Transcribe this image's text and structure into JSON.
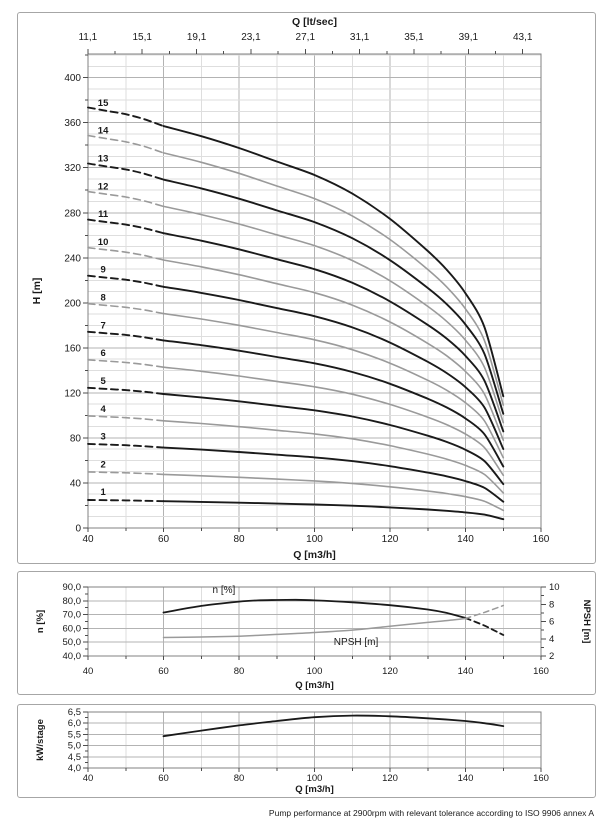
{
  "footer": {
    "text": "Pump performance at 2900rpm with relevant tolerance according to ISO 9906 annex A"
  },
  "colors": {
    "curve_black": "#1a1a1a",
    "curve_gray": "#9a9a9a",
    "grid_minor": "#dedede",
    "grid_major": "#b3b3b3",
    "plot_border": "#808080",
    "tick": "#4d4d4d",
    "panel_border": "#a6a6a6",
    "text": "#1a1a1a"
  },
  "chart_data": [
    {
      "id": "head",
      "type": "line",
      "xlabel": "Q [m3/h]",
      "ylabel": "H [m]",
      "xlim": [
        40,
        160
      ],
      "ylim": [
        0,
        421
      ],
      "grid": {
        "x_step": 10,
        "x_major_step": 20,
        "y_step": 10,
        "y_major_step": 40,
        "on": true
      },
      "x_tick_labels": [
        "40",
        "60",
        "80",
        "100",
        "120",
        "140",
        "160"
      ],
      "x_tick_values": [
        40,
        60,
        80,
        100,
        120,
        140,
        160
      ],
      "y_tick_labels": [
        "0",
        "40",
        "80",
        "120",
        "160",
        "200",
        "240",
        "280",
        "320",
        "360",
        "400"
      ],
      "y_tick_values": [
        0,
        40,
        80,
        120,
        160,
        200,
        240,
        280,
        320,
        360,
        400
      ],
      "top_axis": {
        "title": "Q [lt/sec]",
        "tick_labels": [
          "11,1",
          "15,1",
          "19,1",
          "23,1",
          "27,1",
          "31,1",
          "35,1",
          "39,1",
          "43,1"
        ],
        "tick_values_lt_per_sec": [
          11.1,
          15.1,
          19.1,
          23.1,
          27.1,
          31.1,
          35.1,
          39.1,
          43.1
        ],
        "minor_tick_values_lt_per_sec": [
          13.1,
          17.1,
          21.1,
          25.1,
          29.1,
          33.1,
          37.1,
          41.1
        ],
        "m3h_per_lt_sec": 3.6
      },
      "x": [
        40,
        45,
        50,
        55,
        60,
        70,
        80,
        90,
        100,
        110,
        120,
        130,
        135,
        140,
        145,
        150
      ],
      "dashed_up_to_x": 60,
      "series_label_x": 44,
      "series": [
        {
          "name": "1",
          "color": "black",
          "values": [
            24.9,
            24.7,
            24.5,
            24.2,
            23.8,
            23.2,
            22.5,
            21.7,
            20.9,
            19.8,
            18.3,
            16.4,
            15.3,
            13.9,
            11.9,
            7.8
          ]
        },
        {
          "name": "2",
          "color": "gray",
          "values": [
            49.8,
            49.4,
            49.0,
            48.4,
            47.6,
            46.4,
            45.0,
            43.4,
            41.8,
            39.6,
            36.6,
            32.8,
            30.6,
            27.8,
            23.8,
            15.6
          ]
        },
        {
          "name": "3",
          "color": "black",
          "values": [
            74.7,
            74.1,
            73.5,
            72.6,
            71.4,
            69.6,
            67.5,
            65.1,
            62.7,
            59.4,
            54.9,
            49.2,
            45.9,
            41.7,
            35.7,
            23.4
          ]
        },
        {
          "name": "4",
          "color": "gray",
          "values": [
            99.6,
            98.8,
            98.0,
            96.8,
            95.2,
            92.8,
            90.0,
            86.8,
            83.6,
            79.2,
            73.2,
            65.6,
            61.2,
            55.6,
            47.6,
            31.2
          ]
        },
        {
          "name": "5",
          "color": "black",
          "values": [
            124.5,
            123.5,
            122.5,
            121.0,
            119.0,
            116.0,
            112.5,
            108.5,
            104.5,
            99.0,
            91.5,
            82.0,
            76.5,
            69.5,
            59.5,
            39.0
          ]
        },
        {
          "name": "6",
          "color": "gray",
          "values": [
            149.4,
            148.2,
            147.0,
            145.2,
            142.8,
            139.2,
            135.0,
            130.2,
            125.4,
            118.8,
            109.8,
            98.4,
            91.8,
            83.4,
            71.4,
            46.8
          ]
        },
        {
          "name": "7",
          "color": "black",
          "values": [
            174.3,
            172.9,
            171.5,
            169.4,
            166.6,
            162.4,
            157.5,
            151.9,
            146.3,
            138.6,
            128.1,
            114.8,
            107.1,
            97.3,
            83.3,
            54.6
          ]
        },
        {
          "name": "8",
          "color": "gray",
          "values": [
            199.2,
            197.6,
            196.0,
            193.6,
            190.4,
            185.6,
            180.0,
            173.6,
            167.2,
            158.4,
            146.4,
            131.2,
            122.4,
            111.2,
            95.2,
            62.4
          ]
        },
        {
          "name": "9",
          "color": "black",
          "values": [
            224.1,
            222.3,
            220.5,
            217.8,
            214.2,
            208.8,
            202.5,
            195.3,
            188.1,
            178.2,
            164.7,
            147.6,
            137.7,
            125.1,
            107.1,
            70.2
          ]
        },
        {
          "name": "10",
          "color": "gray",
          "values": [
            249.0,
            247.0,
            245.0,
            242.0,
            238.0,
            232.0,
            225.0,
            217.0,
            209.0,
            198.0,
            183.0,
            164.0,
            153.0,
            139.0,
            119.0,
            78.0
          ]
        },
        {
          "name": "11",
          "color": "black",
          "values": [
            273.9,
            271.7,
            269.5,
            266.2,
            261.8,
            255.2,
            247.5,
            238.7,
            229.9,
            217.8,
            201.3,
            180.4,
            168.3,
            152.9,
            130.9,
            85.8
          ]
        },
        {
          "name": "12",
          "color": "gray",
          "values": [
            298.8,
            296.4,
            294.0,
            290.4,
            285.6,
            278.4,
            270.0,
            260.4,
            250.8,
            237.6,
            219.6,
            196.8,
            183.6,
            166.8,
            142.8,
            93.6
          ]
        },
        {
          "name": "13",
          "color": "black",
          "values": [
            323.7,
            321.1,
            318.5,
            314.6,
            309.4,
            301.6,
            292.5,
            282.1,
            271.7,
            257.4,
            237.9,
            213.2,
            198.9,
            180.7,
            154.7,
            101.4
          ]
        },
        {
          "name": "14",
          "color": "gray",
          "values": [
            348.6,
            345.8,
            343.0,
            338.8,
            333.2,
            324.8,
            315.0,
            303.8,
            292.6,
            277.2,
            256.2,
            229.6,
            214.2,
            194.6,
            166.6,
            109.2
          ]
        },
        {
          "name": "15",
          "color": "black",
          "values": [
            373.5,
            370.5,
            367.5,
            363.0,
            357.0,
            348.0,
            337.5,
            325.5,
            313.5,
            297.0,
            274.5,
            246.0,
            229.5,
            208.5,
            178.5,
            117.0
          ]
        }
      ]
    },
    {
      "id": "efficiency_npsh",
      "type": "line",
      "xlabel": "Q [m3/h]",
      "ylabel_left": "n [%]",
      "ylabel_right": "NPSH [m]",
      "xlim": [
        40,
        160
      ],
      "ylim_left": [
        40,
        90
      ],
      "ylim_right": [
        2,
        10
      ],
      "grid": {
        "x_step": 10,
        "x_major_step": 20,
        "y_step": 10,
        "on": true
      },
      "x_tick_labels": [
        "40",
        "60",
        "80",
        "100",
        "120",
        "140",
        "160"
      ],
      "x_tick_values": [
        40,
        60,
        80,
        100,
        120,
        140,
        160
      ],
      "y_tick_labels_left": [
        "40,0",
        "50,0",
        "60,0",
        "70,0",
        "80,0",
        "90,0"
      ],
      "y_tick_values_left": [
        40,
        50,
        60,
        70,
        80,
        90
      ],
      "y_tick_labels_right": [
        "2",
        "4",
        "6",
        "8",
        "10"
      ],
      "y_tick_values_right": [
        2,
        4,
        6,
        8,
        10
      ],
      "series": [
        {
          "name": "n [%]",
          "axis": "left",
          "color": "black",
          "dashed_from_x": 140,
          "x": [
            60,
            70,
            80,
            85,
            90,
            95,
            100,
            110,
            120,
            130,
            135,
            140,
            145,
            150
          ],
          "values": [
            71.5,
            76.3,
            79.4,
            80.3,
            80.6,
            80.7,
            80.3,
            78.9,
            76.8,
            73.7,
            71.2,
            67.5,
            62.0,
            55.2
          ],
          "label": {
            "text": "n [%]",
            "x": 76,
            "y": 85.5
          }
        },
        {
          "name": "NPSH [m]",
          "axis": "right",
          "color": "gray",
          "dashed_from_x": 140,
          "x": [
            60,
            70,
            80,
            90,
            100,
            110,
            120,
            130,
            135,
            140,
            145,
            150
          ],
          "values": [
            4.15,
            4.2,
            4.3,
            4.5,
            4.72,
            5.0,
            5.45,
            5.9,
            6.1,
            6.35,
            7.05,
            7.85
          ],
          "label": {
            "text": "NPSH [m]",
            "x": 111,
            "y": 47.8
          }
        }
      ]
    },
    {
      "id": "power",
      "type": "line",
      "xlabel": "Q [m3/h]",
      "ylabel": "kW/stage",
      "xlim": [
        40,
        160
      ],
      "ylim": [
        4.0,
        6.5
      ],
      "grid": {
        "x_step": 10,
        "x_major_step": 20,
        "y_step": 0.5,
        "on": true
      },
      "x_tick_labels": [
        "40",
        "60",
        "80",
        "100",
        "120",
        "140",
        "160"
      ],
      "x_tick_values": [
        40,
        60,
        80,
        100,
        120,
        140,
        160
      ],
      "y_tick_labels": [
        "4,0",
        "4,5",
        "5,0",
        "5,5",
        "6,0",
        "6,5"
      ],
      "y_tick_values": [
        4.0,
        4.5,
        5.0,
        5.5,
        6.0,
        6.5
      ],
      "series": [
        {
          "name": "kW/stage",
          "color": "black",
          "x": [
            60,
            70,
            80,
            90,
            100,
            110,
            120,
            130,
            140,
            145,
            150
          ],
          "values": [
            5.42,
            5.67,
            5.9,
            6.1,
            6.27,
            6.34,
            6.31,
            6.22,
            6.1,
            6.0,
            5.87
          ]
        }
      ]
    }
  ]
}
